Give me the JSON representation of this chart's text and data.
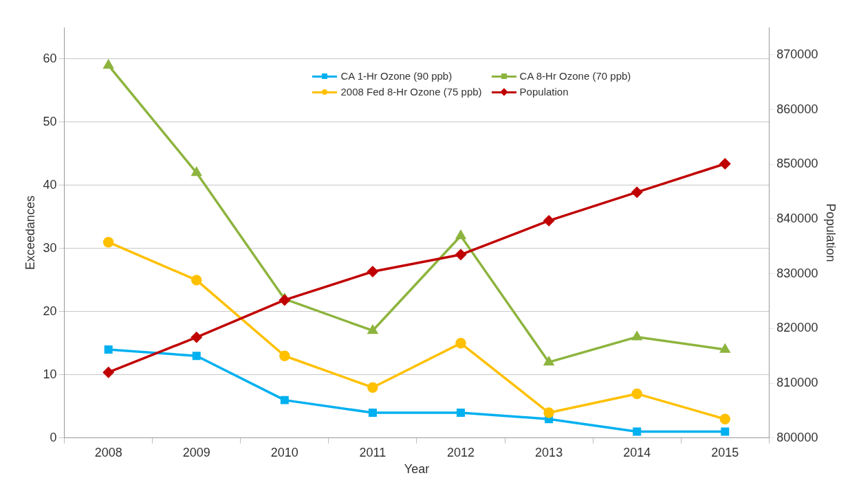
{
  "chart_data": {
    "type": "line",
    "xlabel": "Year",
    "ylabel": "Exceedances",
    "y2label": "Population",
    "categories": [
      "2008",
      "2009",
      "2010",
      "2011",
      "2012",
      "2013",
      "2014",
      "2015"
    ],
    "series": [
      {
        "name": "CA 1-Hr Ozone (90 ppb)",
        "color": "#00b0f0",
        "marker": "square",
        "values": [
          14,
          13,
          6,
          4,
          4,
          3,
          1,
          1
        ]
      },
      {
        "name": "CA 8-Hr Ozone (70 ppb)",
        "color": "#8db43e",
        "marker": "triangle",
        "values": [
          59,
          42,
          22,
          17,
          32,
          12,
          16,
          14
        ]
      },
      {
        "name": "2008 Fed 8-Hr Ozone (75 ppb)",
        "color": "#ffc000",
        "marker": "circle",
        "values": [
          31,
          25,
          13,
          8,
          15,
          4,
          7,
          3
        ]
      },
      {
        "name": "Population",
        "color": "#c00000",
        "marker": "diamond",
        "axis": "y2",
        "values": [
          812000,
          818400,
          825200,
          830400,
          833500,
          839700,
          844900,
          850100
        ]
      }
    ],
    "ylim": [
      0,
      65
    ],
    "yticks": [
      0,
      10,
      20,
      30,
      40,
      50,
      60
    ],
    "y2lim": [
      800000,
      875000
    ],
    "y2ticks": [
      800000,
      810000,
      820000,
      830000,
      840000,
      850000,
      860000,
      870000
    ],
    "grid": "y",
    "legend": "top",
    "line_style": "solid"
  }
}
